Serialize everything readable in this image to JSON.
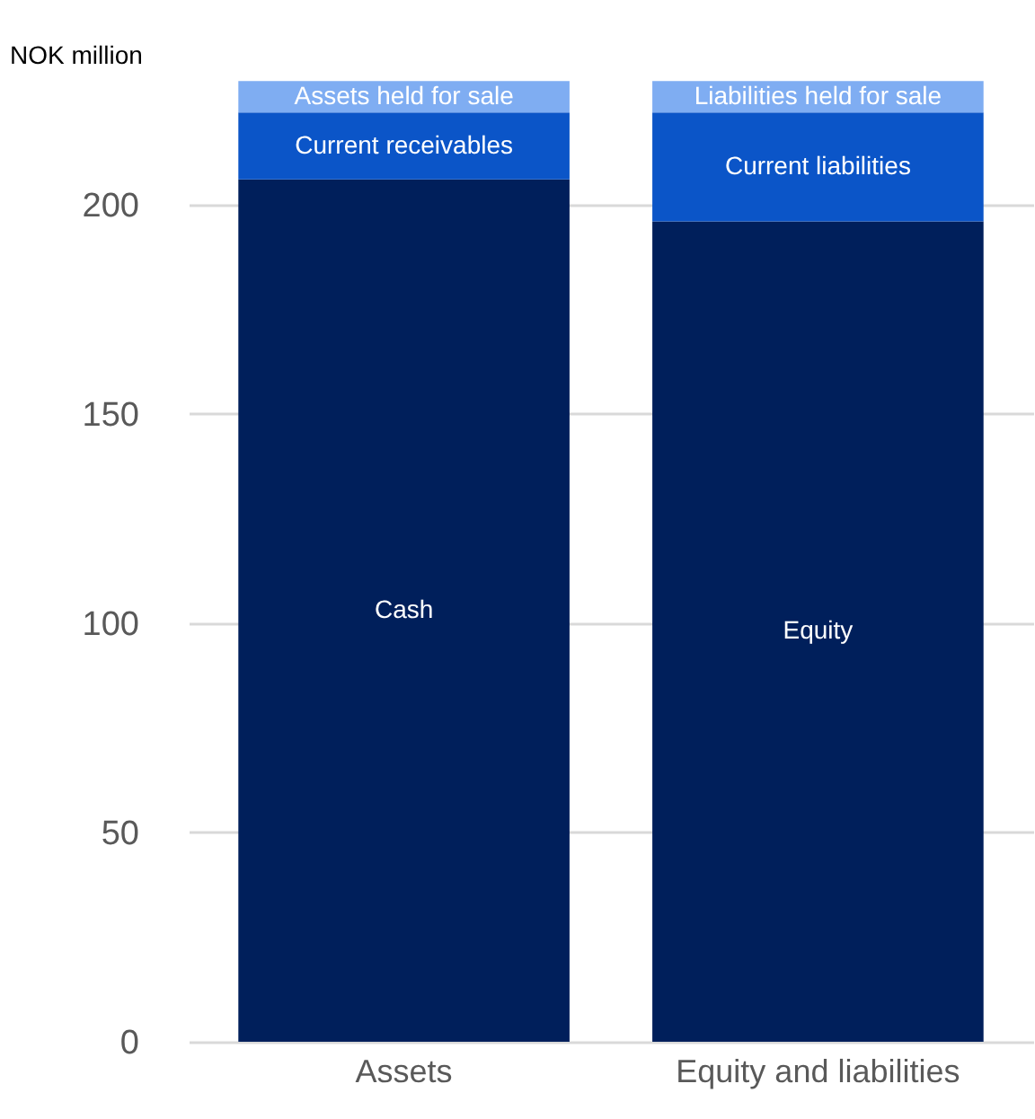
{
  "chart_data": {
    "type": "bar",
    "stacked": true,
    "ylabel": "NOK million",
    "categories": [
      "Assets",
      "Equity and liabilities"
    ],
    "series": [
      {
        "name": "Cash",
        "color": "#001f5b",
        "values": [
          206,
          null
        ]
      },
      {
        "name": "Equity",
        "color": "#001f5b",
        "values": [
          null,
          196
        ]
      },
      {
        "name": "Current receivables",
        "color": "#0b55c8",
        "values": [
          16,
          null
        ]
      },
      {
        "name": "Current liabilities",
        "color": "#0b55c8",
        "values": [
          null,
          26
        ]
      },
      {
        "name": "Assets held for sale",
        "color": "#7fadf2",
        "values": [
          7.5,
          null
        ]
      },
      {
        "name": "Liabilities held for sale",
        "color": "#7fadf2",
        "values": [
          null,
          7.5
        ]
      }
    ],
    "ylim": [
      0,
      230
    ],
    "yticks": [
      0,
      50,
      100,
      150,
      200
    ],
    "grid": "y",
    "legend": false
  }
}
